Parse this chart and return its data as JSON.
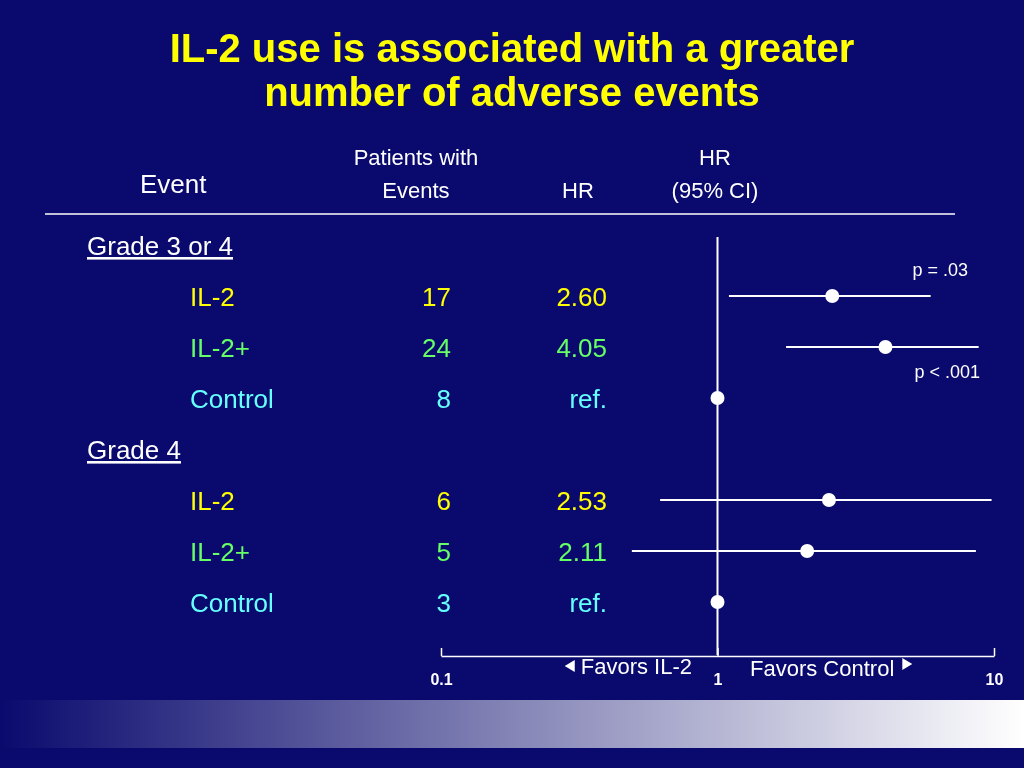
{
  "chart_data": {
    "type": "scatter",
    "orientation": "horizontal",
    "title": "IL-2 use is associated with a greater number of adverse events",
    "categories": [
      null,
      "IL-2",
      "IL-2+",
      "Control",
      null,
      "IL-2",
      "IL-2+",
      "Control"
    ],
    "values": [
      null,
      2.6,
      4.05,
      1,
      null,
      2.53,
      2.11,
      1
    ],
    "errors": [
      null,
      [
        1.1,
        5.9
      ],
      [
        1.77,
        8.8
      ],
      null,
      null,
      [
        0.62,
        9.8
      ],
      [
        0.49,
        8.6
      ],
      null
    ],
    "color": "#ffffff",
    "log": "x",
    "xlim": [
      0.1,
      10
    ],
    "xticks": [
      0.1,
      1,
      10
    ],
    "marker": "circle",
    "ref_lines": [
      {
        "axis": "x",
        "value": 1
      }
    ],
    "annotations": [
      "Event",
      "Patients with Events",
      "HR",
      "HR (95% CI)",
      "Grade 3 or 4",
      "Grade 4",
      "17",
      "24",
      "8",
      "6",
      "5",
      "3",
      "2.60",
      "4.05",
      "ref.",
      "2.53",
      "2.11",
      "ref.",
      "p = .03",
      "p < .001",
      "Favors IL-2",
      "Favors Control"
    ]
  }
}
